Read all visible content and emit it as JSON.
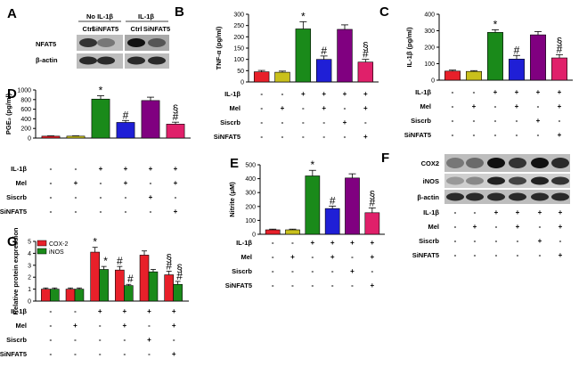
{
  "panel_labels": [
    "A",
    "B",
    "C",
    "D",
    "E",
    "F",
    "G"
  ],
  "colors": {
    "ctrl": "#e8202a",
    "mel": "#c9c01c",
    "il1b": "#1a8a1a",
    "il1b_mel": "#1f1fd6",
    "siscrb": "#800080",
    "sinfat5": "#e0206a",
    "cox2": "#e8202a",
    "inos": "#1a8a1a",
    "band": "#222222",
    "blot_bg": "#bdbdbd"
  },
  "condition_labels": [
    "IL-1β",
    "Mel",
    "Siscrb",
    "SiNFAT5"
  ],
  "condition_matrix": [
    [
      "-",
      "-",
      "+",
      "+",
      "+",
      "+"
    ],
    [
      "-",
      "+",
      "-",
      "+",
      "-",
      "+"
    ],
    [
      "-",
      "-",
      "-",
      "-",
      "+",
      "-"
    ],
    [
      "-",
      "-",
      "-",
      "-",
      "-",
      "+"
    ]
  ],
  "blot_A": {
    "group_labels": [
      "No IL-1β",
      "IL-1β"
    ],
    "lane_labels": [
      "Ctrl",
      "SiNFAT5",
      "Ctrl",
      "SiNFAT5"
    ],
    "row_labels": [
      "NFAT5",
      "β-actin"
    ]
  },
  "blot_F": {
    "row_labels": [
      "COX2",
      "iNOS",
      "β-actin"
    ]
  },
  "chart_data": [
    {
      "panel": "B",
      "type": "bar",
      "ylabel": "TNF-α (pg/ml)",
      "ylim": [
        0,
        300
      ],
      "yticks": [
        "0",
        "50",
        "100",
        "150",
        "200",
        "250",
        "300"
      ],
      "values": [
        45,
        43,
        235,
        100,
        233,
        88
      ],
      "errors": [
        6,
        5,
        32,
        15,
        20,
        12
      ],
      "annotations": [
        "",
        "",
        "*",
        "#",
        "",
        "§\n#"
      ]
    },
    {
      "panel": "C",
      "type": "bar",
      "ylabel": "IL-1β (pg/ml)",
      "ylim": [
        0,
        400
      ],
      "yticks": [
        "0",
        "100",
        "200",
        "300",
        "400"
      ],
      "values": [
        55,
        53,
        290,
        128,
        275,
        135
      ],
      "errors": [
        6,
        5,
        16,
        22,
        20,
        20
      ],
      "annotations": [
        "",
        "",
        "*",
        "#",
        "",
        "§\n#"
      ]
    },
    {
      "panel": "D",
      "type": "bar",
      "ylabel": "PGE₂ (pg/ml)",
      "ylim": [
        0,
        1000
      ],
      "yticks": [
        "0",
        "200",
        "400",
        "600",
        "800",
        "1000"
      ],
      "values": [
        40,
        40,
        810,
        325,
        780,
        290
      ],
      "errors": [
        6,
        6,
        70,
        40,
        70,
        40
      ],
      "annotations": [
        "",
        "",
        "*",
        "#",
        "",
        "§\n#"
      ]
    },
    {
      "panel": "E",
      "type": "bar",
      "ylabel": "Nitrite (μM)",
      "ylim": [
        0,
        500
      ],
      "yticks": [
        "0",
        "100",
        "200",
        "300",
        "400",
        "500"
      ],
      "values": [
        32,
        32,
        420,
        185,
        405,
        155
      ],
      "errors": [
        5,
        5,
        40,
        18,
        30,
        35
      ],
      "annotations": [
        "",
        "",
        "*",
        "#",
        "",
        "§\n#"
      ]
    },
    {
      "panel": "G",
      "type": "bar",
      "ylabel": "Relative protein expression",
      "ylim": [
        0,
        5
      ],
      "yticks": [
        "0",
        "1",
        "2",
        "3",
        "4",
        "5"
      ],
      "legend": [
        "COX-2",
        "iNOS"
      ],
      "series": [
        {
          "name": "COX-2",
          "values": [
            1.0,
            1.0,
            4.1,
            2.6,
            3.85,
            2.2
          ],
          "errors": [
            0.1,
            0.1,
            0.4,
            0.3,
            0.35,
            0.3
          ],
          "annotations": [
            "",
            "",
            "*",
            "#",
            "",
            "§\n#"
          ]
        },
        {
          "name": "iNOS",
          "values": [
            1.0,
            1.0,
            2.65,
            1.3,
            2.45,
            1.4
          ],
          "errors": [
            0.1,
            0.1,
            0.25,
            0.1,
            0.2,
            0.25
          ],
          "annotations": [
            "",
            "",
            "*",
            "#",
            "",
            "§\n#"
          ]
        }
      ]
    }
  ]
}
